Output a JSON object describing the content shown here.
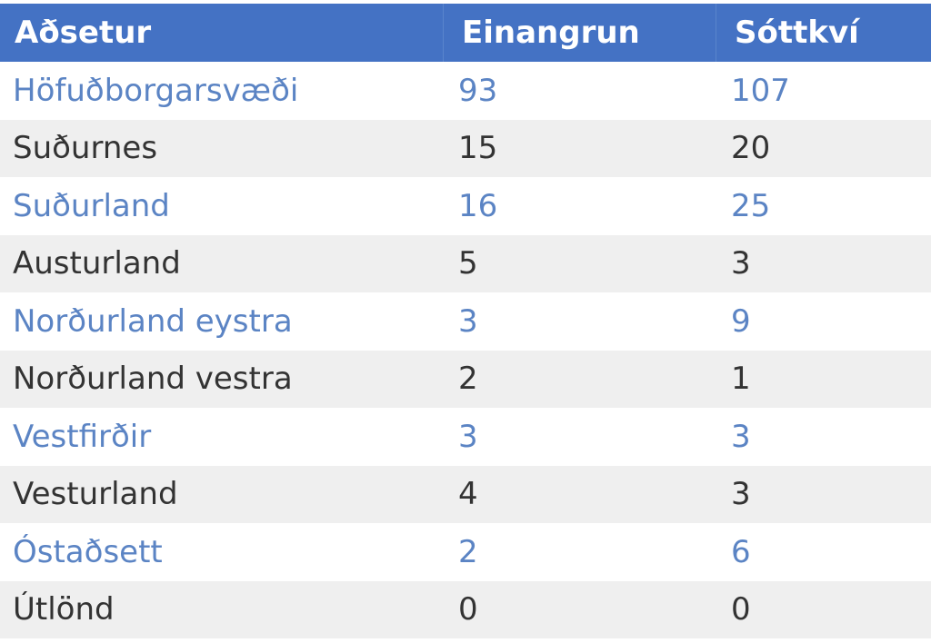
{
  "table": {
    "headers": [
      "Aðsetur",
      "Einangrun",
      "Sóttkví"
    ],
    "rows": [
      [
        "Höfuðborgarsvæði",
        "93",
        "107"
      ],
      [
        "Suðurnes",
        "15",
        "20"
      ],
      [
        "Suðurland",
        "16",
        "25"
      ],
      [
        "Austurland",
        "5",
        "3"
      ],
      [
        "Norðurland eystra",
        "3",
        "9"
      ],
      [
        "Norðurland vestra",
        "2",
        "1"
      ],
      [
        "Vestfirðir",
        "3",
        "3"
      ],
      [
        "Vesturland",
        "4",
        "3"
      ],
      [
        "Óstaðsett",
        "2",
        "6"
      ],
      [
        "Útlönd",
        "0",
        "0"
      ]
    ]
  },
  "colors": {
    "header_bg": "#4472c4",
    "header_text": "#ffffff",
    "row_text_blue": "#5b84c4",
    "row_text_dark": "#333333",
    "row_alt_bg": "#efefef"
  }
}
